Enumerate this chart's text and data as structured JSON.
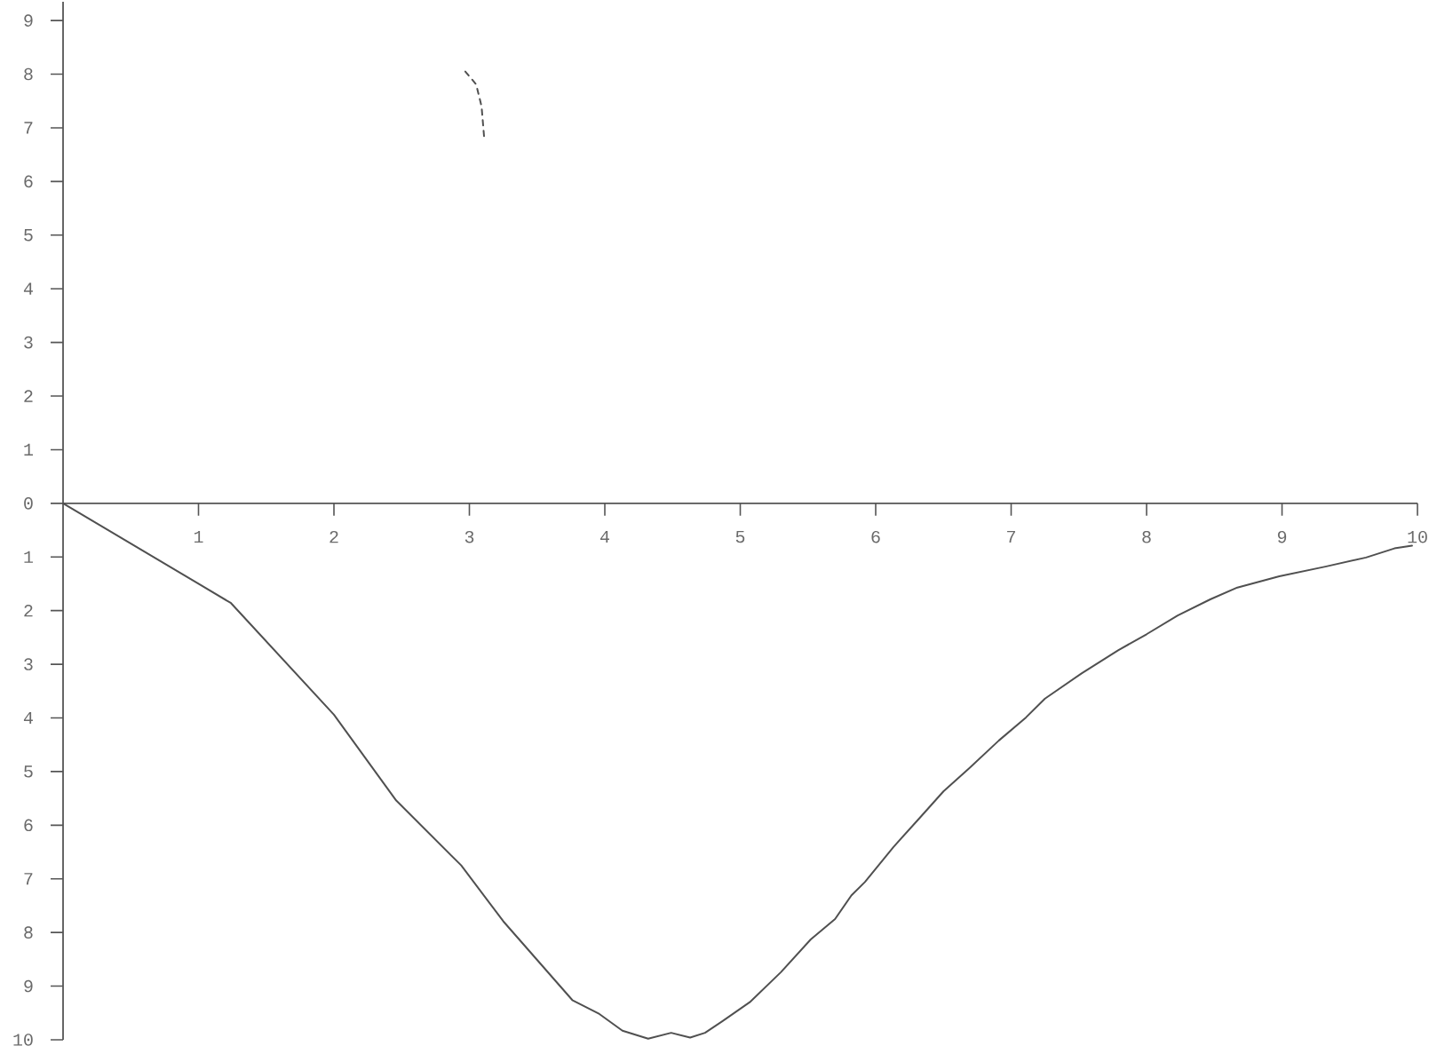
{
  "chart_data": {
    "type": "line",
    "xlim": [
      0,
      10
    ],
    "ylim": [
      -10,
      9.35
    ],
    "xticks": [
      1,
      2,
      3,
      4,
      5,
      6,
      7,
      8,
      9,
      10
    ],
    "yticks": [
      {
        "value": -10,
        "label": "10"
      },
      {
        "value": -9,
        "label": "9"
      },
      {
        "value": -8,
        "label": "8"
      },
      {
        "value": -7,
        "label": "7"
      },
      {
        "value": -6,
        "label": "6"
      },
      {
        "value": -5,
        "label": "5"
      },
      {
        "value": -4,
        "label": "4"
      },
      {
        "value": -3,
        "label": "3"
      },
      {
        "value": -2,
        "label": "2"
      },
      {
        "value": -1,
        "label": "1"
      },
      0,
      1,
      2,
      3,
      4,
      5,
      6,
      7,
      8,
      9
    ],
    "series": [
      {
        "color": "#505050",
        "x": [
          0,
          1.0,
          1.24,
          2.0,
          2.46,
          2.94,
          3.25,
          3.76,
          3.96,
          4.13,
          4.32,
          4.49,
          4.63,
          4.74,
          4.87,
          5.07,
          5.3,
          5.52,
          5.7,
          5.82,
          5.92,
          6.13,
          6.33,
          6.5,
          6.69,
          6.91,
          7.11,
          7.25,
          7.52,
          7.79,
          8.0,
          8.23,
          8.47,
          8.67,
          8.98,
          9.32,
          9.62,
          9.83,
          9.96
        ],
        "values": [
          0,
          -1.5,
          -1.86,
          -3.94,
          -5.54,
          -6.75,
          -7.79,
          -9.26,
          -9.52,
          -9.83,
          -9.98,
          -9.87,
          -9.96,
          -9.87,
          -9.65,
          -9.3,
          -8.74,
          -8.13,
          -7.75,
          -7.31,
          -7.06,
          -6.41,
          -5.85,
          -5.37,
          -4.94,
          -4.42,
          -3.99,
          -3.64,
          -3.17,
          -2.74,
          -2.44,
          -2.09,
          -1.79,
          -1.57,
          -1.36,
          -1.18,
          -1.01,
          -0.84,
          -0.79
        ]
      },
      {
        "color": "#505050",
        "line_style": "dashed",
        "x": [
          2.97,
          3.05,
          3.09,
          3.11
        ],
        "values": [
          8.05,
          7.81,
          7.4,
          6.79
        ]
      }
    ]
  }
}
